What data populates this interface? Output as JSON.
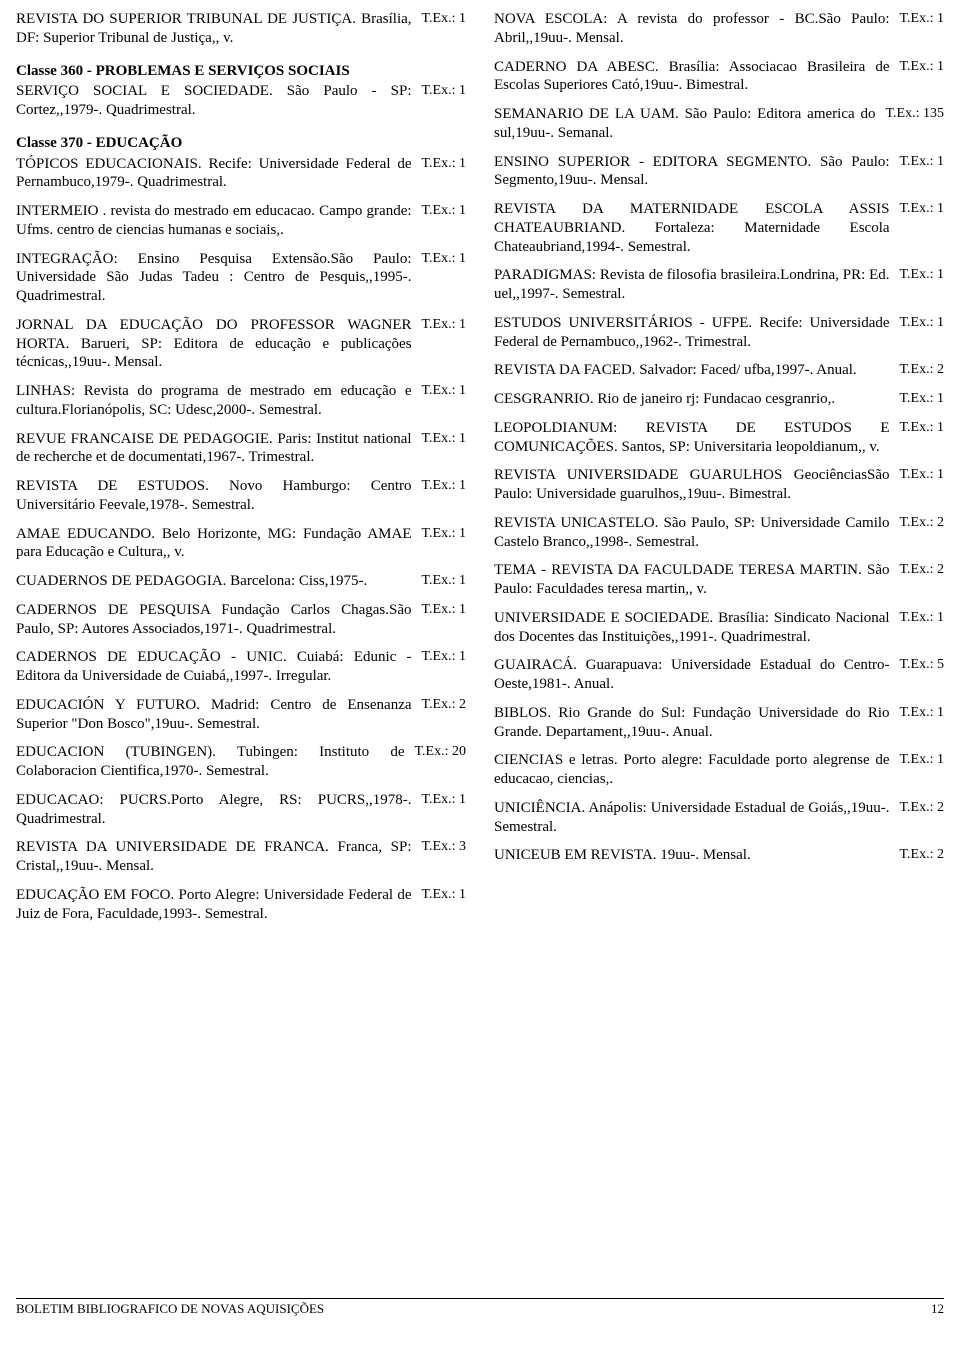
{
  "footer": {
    "left": "BOLETIM BIBLIOGRAFICO DE NOVAS AQUISIÇÕES",
    "page": "12"
  },
  "left": {
    "e0": {
      "text": "REVISTA  DO SUPERIOR TRIBUNAL DE JUSTIÇA.  Brasília, DF: Superior Tribunal de Justiça,, v.",
      "tex": "T.Ex.: 1"
    },
    "c360": "Classe 360 - PROBLEMAS E SERVIÇOS SOCIAIS",
    "e1": {
      "text": "SERVIÇO  SOCIAL E SOCIEDADE.  São Paulo - SP: Cortez,,1979-.  Quadrimestral.",
      "tex": "T.Ex.: 1"
    },
    "c370": "Classe 370 - EDUCAÇÃO",
    "e2": {
      "text": "TÓPICOS  EDUCACIONAIS.  Recife: Universidade Federal de Pernambuco,1979-. Quadrimestral.",
      "tex": "T.Ex.: 1"
    },
    "e3": {
      "text": "INTERMEIO .  revista do mestrado em educacao.  Campo grande: Ufms. centro de ciencias humanas e sociais,.",
      "tex": "T.Ex.: 1"
    },
    "e4": {
      "text": "INTEGRAÇÃO:      Ensino Pesquisa Extensão.São Paulo: Universidade São Judas Tadeu : Centro de Pesquis,,1995-.  Quadrimestral.",
      "tex": "T.Ex.: 1"
    },
    "e5": {
      "text": "JORNAL  DA EDUCAÇÃO DO PROFESSOR WAGNER HORTA.  Barueri, SP: Editora de educação e publicações técnicas,,19uu-.  Mensal.",
      "tex": "T.Ex.: 1"
    },
    "e6": {
      "text": "LINHAS:      Revista do programa de mestrado em educação e cultura.Florianópolis, SC: Udesc,2000-.  Semestral.",
      "tex": "T.Ex.: 1"
    },
    "e7": {
      "text": "REVUE  FRANCAISE DE PEDAGOGIE. Paris: Institut national de recherche et de documentati,1967-.  Trimestral.",
      "tex": "T.Ex.: 1"
    },
    "e8": {
      "text": "REVISTA  DE ESTUDOS.  Novo Hamburgo: Centro Universitário Feevale,1978-.  Semestral.",
      "tex": "T.Ex.: 1"
    },
    "e9": {
      "text": "AMAE  EDUCANDO.  Belo Horizonte, MG: Fundação AMAE para Educação e Cultura,, v.",
      "tex": "T.Ex.: 1"
    },
    "e10": {
      "text": "CUADERNOS  DE PEDAGOGIA.  Barcelona: Ciss,1975-.",
      "tex": "T.Ex.: 1"
    },
    "e11": {
      "text": "CADERNOS  DE PESQUISA      Fundação Carlos Chagas.São Paulo, SP: Autores Associados,1971-.  Quadrimestral.",
      "tex": "T.Ex.: 1"
    },
    "e12": {
      "text": "CADERNOS  DE EDUCAÇÃO - UNIC. Cuiabá: Edunic - Editora da Universidade de Cuiabá,,1997-.  Irregular.",
      "tex": "T.Ex.: 1"
    },
    "e13": {
      "text": "EDUCACIÓN  Y FUTURO.  Madrid: Centro de Ensenanza Superior \"Don Bosco\",19uu-. Semestral.",
      "tex": "T.Ex.: 2"
    },
    "e14": {
      "text": "EDUCACION  (TUBINGEN).  Tubingen: Instituto de Colaboracion Cientifica,1970-. Semestral.",
      "tex": "T.Ex.: 20"
    },
    "e15": {
      "text": "EDUCACAO:      PUCRS.Porto Alegre, RS: PUCRS,,1978-.  Quadrimestral.",
      "tex": "T.Ex.: 1"
    },
    "e16": {
      "text": "REVISTA  DA UNIVERSIDADE DE FRANCA.  Franca, SP: Cristal,,19uu-.  Mensal.",
      "tex": "T.Ex.: 3"
    },
    "e17": {
      "text": "EDUCAÇÃO  EM FOCO.  Porto Alegre: Universidade Federal de Juiz de Fora, Faculdade,1993-.  Semestral.",
      "tex": "T.Ex.: 1"
    }
  },
  "right": {
    "e0": {
      "text": "NOVA  ESCOLA:      A revista do professor - BC.São Paulo: Abril,,19uu-.  Mensal.",
      "tex": "T.Ex.: 1"
    },
    "e1": {
      "text": "CADERNO  DA ABESC.  Brasília: Associacao Brasileira de Escolas Superiores Cató,19uu-. Bimestral.",
      "tex": "T.Ex.: 1"
    },
    "e2": {
      "text": "SEMANARIO  DE LA UAM.  São Paulo: Editora america do sul,19uu-.  Semanal.",
      "tex": "T.Ex.: 135"
    },
    "e3": {
      "text": "ENSINO  SUPERIOR - EDITORA SEGMENTO.  São Paulo: Segmento,19uu-. Mensal.",
      "tex": "T.Ex.: 1"
    },
    "e4": {
      "text": "REVISTA  DA MATERNIDADE ESCOLA ASSIS CHATEAUBRIAND.  Fortaleza: Maternidade Escola Chateaubriand,1994-. Semestral.",
      "tex": "T.Ex.: 1"
    },
    "e5": {
      "text": "PARADIGMAS:      Revista de filosofia brasileira.Londrina, PR: Ed. uel,,1997-. Semestral.",
      "tex": "T.Ex.: 1"
    },
    "e6": {
      "text": "ESTUDOS  UNIVERSITÁRIOS - UFPE. Recife: Universidade Federal de Pernambuco,,1962-.  Trimestral.",
      "tex": "T.Ex.: 1"
    },
    "e7": {
      "text": "REVISTA  DA FACED.  Salvador: Faced/ ufba,1997-.  Anual.",
      "tex": "T.Ex.: 2"
    },
    "e8": {
      "text": "CESGRANRIO.  Rio de janeiro rj: Fundacao cesgranrio,.",
      "tex": "T.Ex.: 1"
    },
    "e9": {
      "text": "LEOPOLDIANUM:  REVISTA DE ESTUDOS E COMUNICAÇÕES.  Santos, SP: Universitaria leopoldianum,, v.",
      "tex": "T.Ex.: 1"
    },
    "e10": {
      "text": "REVISTA  UNIVERSIDADE GUARULHOS   GeociênciasSão Paulo: Universidade guarulhos,,19uu-.  Bimestral.",
      "tex": "T.Ex.: 1"
    },
    "e11": {
      "text": "REVISTA  UNICASTELO.  São Paulo, SP: Universidade Camilo Castelo Branco,,1998-. Semestral.",
      "tex": "T.Ex.: 2"
    },
    "e12": {
      "text": "TEMA  - REVISTA DA FACULDADE TERESA MARTIN.  São Paulo: Faculdades teresa martin,, v.",
      "tex": "T.Ex.: 2"
    },
    "e13": {
      "text": "UNIVERSIDADE  E SOCIEDADE.  Brasília: Sindicato Nacional dos Docentes das Instituições,,1991-.  Quadrimestral.",
      "tex": "T.Ex.: 1"
    },
    "e14": {
      "text": "GUAIRACÁ.  Guarapuava: Universidade Estadual do Centro-Oeste,1981-.  Anual.",
      "tex": "T.Ex.: 5"
    },
    "e15": {
      "text": "BIBLOS.  Rio Grande do Sul: Fundação Universidade do Rio Grande. Departament,,19uu-.  Anual.",
      "tex": "T.Ex.: 1"
    },
    "e16": {
      "text": "CIENCIAS  e letras.  Porto alegre: Faculdade porto alegrense de educacao, ciencias,.",
      "tex": "T.Ex.: 1"
    },
    "e17": {
      "text": "UNICIÊNCIA.  Anápolis: Universidade Estadual de Goiás,,19uu-.  Semestral.",
      "tex": "T.Ex.: 2"
    },
    "e18": {
      "text": "UNICEUB  EM REVISTA.  19uu-.  Mensal.",
      "tex": "T.Ex.: 2"
    }
  }
}
